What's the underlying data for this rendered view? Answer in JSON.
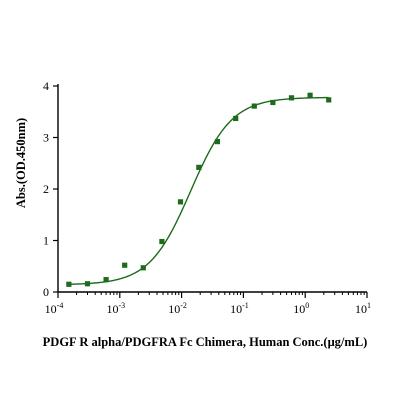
{
  "chart_data": {
    "type": "scatter",
    "title": "",
    "xlabel": "PDGF R alpha/PDGFRA Fc Chimera, Human Conc.(μg/mL)",
    "ylabel": "Abs.(OD.450nm)",
    "x_scale": "log",
    "xlim": [
      0.0001,
      10
    ],
    "ylim": [
      0,
      4
    ],
    "x_ticks": [
      {
        "value": 0.0001,
        "base": "10",
        "exp": "-4"
      },
      {
        "value": 0.001,
        "base": "10",
        "exp": "-3"
      },
      {
        "value": 0.01,
        "base": "10",
        "exp": "-2"
      },
      {
        "value": 0.1,
        "base": "10",
        "exp": "-1"
      },
      {
        "value": 1,
        "base": "10",
        "exp": "0"
      },
      {
        "value": 10,
        "base": "10",
        "exp": "1"
      }
    ],
    "y_ticks": [
      0,
      1,
      2,
      3,
      4
    ],
    "grid": false,
    "legend": "none",
    "series": [
      {
        "marker": "square",
        "color": "#1e6b1e",
        "x": [
          0.00015,
          0.0003,
          0.0006,
          0.0012,
          0.0024,
          0.0048,
          0.0096,
          0.019,
          0.038,
          0.075,
          0.15,
          0.3,
          0.6,
          1.2,
          2.4
        ],
        "y": [
          0.15,
          0.16,
          0.24,
          0.52,
          0.47,
          0.98,
          1.75,
          2.42,
          2.92,
          3.37,
          3.61,
          3.68,
          3.77,
          3.82,
          3.73
        ]
      }
    ],
    "fit_curve": {
      "color": "#1e6b1e",
      "model": "4PL",
      "bottom": 0.14,
      "top": 3.78,
      "ec50": 0.014,
      "hill": 1.3
    }
  }
}
